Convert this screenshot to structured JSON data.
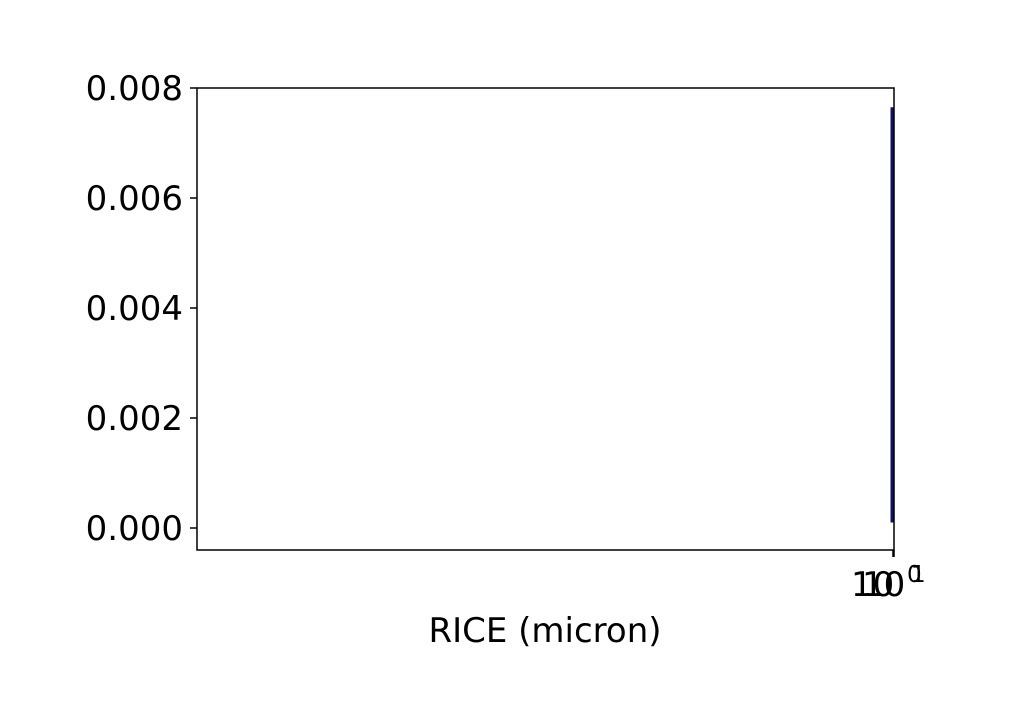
{
  "chart_data": {
    "type": "line",
    "title": "",
    "xlabel": "RICE (micron)",
    "ylabel": "",
    "x_scale": "log",
    "yticks": [
      "0.000",
      "0.002",
      "0.004",
      "0.006",
      "0.008"
    ],
    "ytick_values": [
      0,
      0.002,
      0.004,
      0.006,
      0.008
    ],
    "ylim": [
      -0.0004,
      0.008
    ],
    "xticks_overlapping": [
      {
        "base": "10",
        "exponent": "0"
      },
      {
        "base": "10",
        "exponent": "1"
      }
    ],
    "grid": false,
    "series": [
      {
        "color": "#10106e",
        "x": [
          1,
          1,
          1,
          1
        ],
        "values": [
          0.0001,
          0.0005,
          0.004,
          0.00765
        ]
      }
    ]
  }
}
